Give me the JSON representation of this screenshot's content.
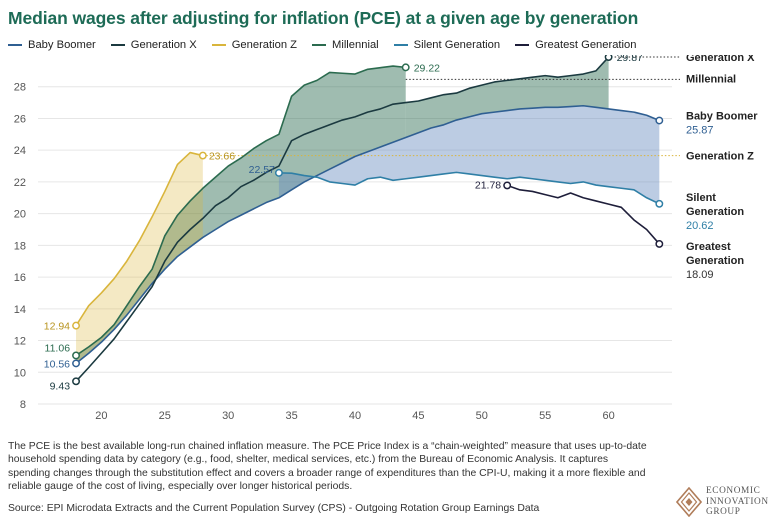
{
  "chart_data": {
    "type": "line",
    "title": "Median wages after adjusting for inflation (PCE) at a given age by generation",
    "xlabel": "",
    "ylabel": "",
    "xlim": [
      15,
      65
    ],
    "ylim": [
      8,
      30
    ],
    "xticks": [
      20,
      25,
      30,
      35,
      40,
      45,
      50,
      55,
      60
    ],
    "yticks": [
      8,
      10,
      12,
      14,
      16,
      18,
      20,
      22,
      24,
      26,
      28
    ],
    "grid": "horizontal",
    "legend_position": "top",
    "series": [
      {
        "name": "Baby Boomer",
        "color": "#2f5f92",
        "x": [
          18,
          19,
          20,
          21,
          22,
          23,
          24,
          25,
          26,
          27,
          28,
          29,
          30,
          31,
          32,
          33,
          34,
          35,
          36,
          37,
          38,
          39,
          40,
          41,
          42,
          43,
          44,
          45,
          46,
          47,
          48,
          49,
          50,
          51,
          52,
          53,
          54,
          55,
          56,
          57,
          58,
          59,
          60,
          61,
          62,
          63,
          64
        ],
        "y": [
          10.56,
          11.2,
          11.9,
          12.7,
          13.6,
          14.6,
          15.6,
          16.5,
          17.3,
          17.9,
          18.5,
          19.0,
          19.5,
          19.9,
          20.3,
          20.7,
          21.0,
          21.5,
          22.0,
          22.4,
          22.8,
          23.2,
          23.6,
          23.9,
          24.2,
          24.5,
          24.8,
          25.1,
          25.4,
          25.6,
          25.9,
          26.1,
          26.3,
          26.4,
          26.5,
          26.6,
          26.65,
          26.7,
          26.7,
          26.75,
          26.8,
          26.7,
          26.6,
          26.5,
          26.4,
          26.2,
          25.87
        ],
        "end_label": "25.87",
        "start_label": "10.56"
      },
      {
        "name": "Generation X",
        "color": "#1b3a40",
        "x": [
          18,
          19,
          20,
          21,
          22,
          23,
          24,
          25,
          26,
          27,
          28,
          29,
          30,
          31,
          32,
          33,
          34,
          35,
          36,
          37,
          38,
          39,
          40,
          41,
          42,
          43,
          44,
          45,
          46,
          47,
          48,
          49,
          50,
          51,
          52,
          53,
          54,
          55,
          56,
          57,
          58,
          59,
          60
        ],
        "y": [
          9.43,
          10.3,
          11.2,
          12.1,
          13.2,
          14.3,
          15.4,
          17.0,
          18.2,
          19.0,
          19.7,
          20.5,
          21.0,
          21.7,
          22.1,
          22.6,
          23.0,
          24.6,
          25.0,
          25.3,
          25.6,
          25.9,
          26.1,
          26.4,
          26.6,
          26.9,
          27.0,
          27.1,
          27.3,
          27.5,
          27.6,
          27.9,
          28.1,
          28.3,
          28.4,
          28.5,
          28.6,
          28.7,
          28.6,
          28.7,
          28.8,
          29.0,
          29.87
        ],
        "end_label": "29.87",
        "start_label": "9.43"
      },
      {
        "name": "Generation Z",
        "color": "#d9b53c",
        "x": [
          18,
          19,
          20,
          21,
          22,
          23,
          24,
          25,
          26,
          27,
          28
        ],
        "y": [
          12.94,
          14.2,
          15.0,
          15.9,
          17.0,
          18.3,
          19.8,
          21.4,
          23.1,
          23.85,
          23.66
        ],
        "end_label": "23.66",
        "start_label": "12.94"
      },
      {
        "name": "Millennial",
        "color": "#2b6b4f",
        "x": [
          18,
          19,
          20,
          21,
          22,
          23,
          24,
          25,
          26,
          27,
          28,
          29,
          30,
          31,
          32,
          33,
          34,
          35,
          36,
          37,
          38,
          39,
          40,
          41,
          42,
          43,
          44
        ],
        "y": [
          11.06,
          11.6,
          12.2,
          13.0,
          14.2,
          15.4,
          16.5,
          18.6,
          19.9,
          20.8,
          21.6,
          22.3,
          23.0,
          23.5,
          24.1,
          24.6,
          25.0,
          27.4,
          28.1,
          28.4,
          28.9,
          28.85,
          28.8,
          29.1,
          29.2,
          29.3,
          29.22
        ],
        "end_label": "29.22",
        "start_label": "11.06"
      },
      {
        "name": "Silent Generation",
        "color": "#2f7fa6",
        "x": [
          34,
          35,
          36,
          37,
          38,
          39,
          40,
          41,
          42,
          43,
          44,
          45,
          46,
          47,
          48,
          49,
          50,
          51,
          52,
          53,
          54,
          55,
          56,
          57,
          58,
          59,
          60,
          61,
          62,
          63,
          64
        ],
        "y": [
          22.57,
          22.55,
          22.4,
          22.3,
          22.0,
          21.9,
          21.8,
          22.2,
          22.3,
          22.1,
          22.2,
          22.3,
          22.4,
          22.5,
          22.6,
          22.5,
          22.4,
          22.3,
          22.2,
          22.3,
          22.2,
          22.1,
          22.0,
          21.9,
          22.0,
          21.8,
          21.7,
          21.6,
          21.5,
          21.0,
          20.62
        ],
        "end_label": "20.62",
        "start_label": "22.57"
      },
      {
        "name": "Greatest Generation",
        "color": "#1e1e3a",
        "x": [
          52,
          53,
          54,
          55,
          56,
          57,
          58,
          59,
          60,
          61,
          62,
          63,
          64
        ],
        "y": [
          21.78,
          21.5,
          21.4,
          21.2,
          21.0,
          21.3,
          21.0,
          20.8,
          20.6,
          20.4,
          19.6,
          19.0,
          18.09
        ],
        "end_label": "18.09",
        "start_label": "21.78"
      }
    ],
    "right_labels": {
      "gen_x": "Generation X",
      "millennial": "Millennial",
      "baby_boomer": "Baby Boomer",
      "baby_boomer_value": "25.87",
      "gen_z": "Generation Z",
      "silent_1": "Silent",
      "silent_2": "Generation",
      "silent_value": "20.62",
      "greatest_1": "Greatest",
      "greatest_2": "Generation",
      "greatest_value": "18.09"
    }
  },
  "note": "The PCE is the best available long-run chained inflation measure. The PCE Price Index is a “chain-weighted” measure that uses up-to-date household spending data by category (e.g., food, shelter, medical services, etc.) from the Bureau of Economic Analysis. It captures spending changes through the substitution effect and covers a broader range of expenditures than the CPI-U, making it a more flexible and reliable gauge of the cost of living, especially over longer historical periods.",
  "source": "Source: EPI Microdata Extracts and the Current Population Survey (CPS) - Outgoing Rotation Group Earnings Data",
  "logo": {
    "line1": "ECONOMIC",
    "line2": "INNOVATION",
    "line3": "GROUP",
    "accent": "#b07d5a"
  }
}
